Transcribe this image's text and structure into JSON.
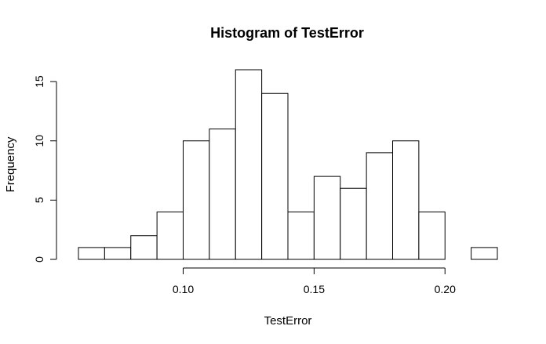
{
  "chart_data": {
    "type": "bar",
    "subtype": "histogram",
    "title": "Histogram of TestError",
    "xlabel": "TestError",
    "ylabel": "Frequency",
    "bin_edges": [
      0.06,
      0.07,
      0.08,
      0.09,
      0.1,
      0.11,
      0.12,
      0.13,
      0.14,
      0.15,
      0.16,
      0.17,
      0.18,
      0.19,
      0.2,
      0.21,
      0.22
    ],
    "values": [
      1,
      1,
      2,
      4,
      10,
      11,
      16,
      14,
      4,
      7,
      6,
      9,
      10,
      4,
      0,
      1
    ],
    "xlim": [
      0.06,
      0.22
    ],
    "ylim": [
      0,
      16
    ],
    "x_ticks": [
      0.1,
      0.15,
      0.2
    ],
    "x_tick_labels": [
      "0.10",
      "0.15",
      "0.20"
    ],
    "y_ticks": [
      0,
      5,
      10,
      15
    ],
    "y_tick_labels": [
      "0",
      "5",
      "10",
      "15"
    ],
    "grid": false,
    "bar_fill": "#ffffff",
    "bar_stroke": "#000000"
  }
}
